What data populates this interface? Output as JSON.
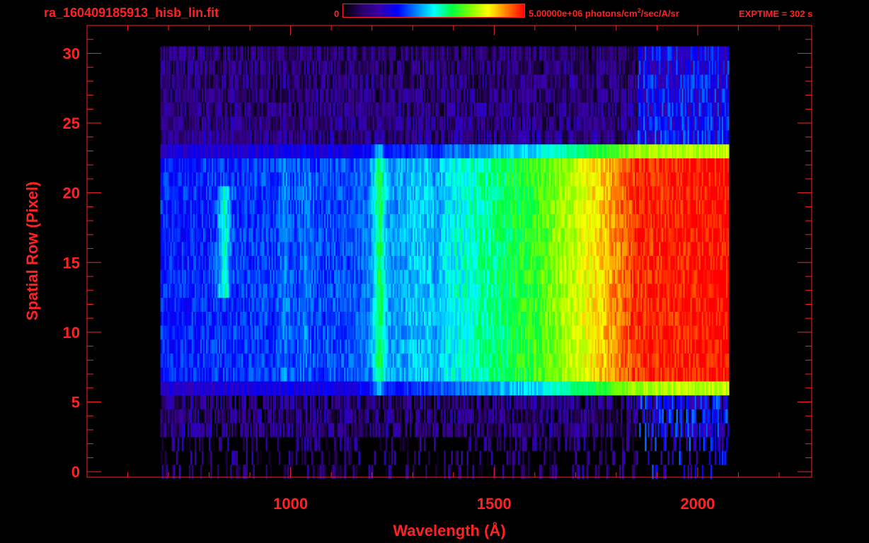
{
  "header": {
    "title": "ra_160409185913_hisb_lin.fit",
    "colorbar_min": "0",
    "colorbar_max_prefix": "5.00000e+06 photons/cm",
    "colorbar_max_sup": "2",
    "colorbar_max_suffix": "/sec/A/sr",
    "exptime": "EXPTIME = 302 s"
  },
  "colors": {
    "axes": "#ff2222",
    "background": "#000000",
    "colormap": [
      "#000000",
      "#2a0066",
      "#3a00aa",
      "#0000ff",
      "#0080ff",
      "#00ffff",
      "#00ff40",
      "#7fff00",
      "#ffff00",
      "#ff8000",
      "#ff0000"
    ]
  },
  "chart_data": {
    "type": "heatmap",
    "title": "ra_160409185913_hisb_lin.fit",
    "xlabel": "Wavelength (Å)",
    "ylabel": "Spatial Row (Pixel)",
    "x_ticks": [
      1000,
      1500,
      2000
    ],
    "y_ticks": [
      0,
      5,
      10,
      15,
      20,
      25,
      30
    ],
    "xlim": [
      500,
      2280
    ],
    "ylim": [
      -0.4,
      32
    ],
    "colorbar_range": [
      0,
      5000000
    ],
    "colorbar_units": "photons/cm^2/sec/A/sr",
    "data_extent": {
      "wavelength": [
        680,
        2075
      ],
      "rows": [
        0,
        30
      ]
    },
    "bright_band_rows": [
      6,
      23
    ],
    "emission_features_A": [
      {
        "wavelength": 835,
        "rows": [
          13,
          20
        ],
        "intensity": 0.55
      },
      {
        "wavelength": 985,
        "rows": [
          7,
          23
        ],
        "intensity": 0.4
      },
      {
        "wavelength": 1034,
        "rows": [
          7,
          23
        ],
        "intensity": 0.4
      },
      {
        "wavelength": 1216,
        "rows": [
          5,
          24
        ],
        "intensity": 0.62
      },
      {
        "wavelength": 1304,
        "rows": [
          7,
          23
        ],
        "intensity": 0.45
      },
      {
        "wavelength": 1356,
        "rows": [
          7,
          23
        ],
        "intensity": 0.42
      }
    ],
    "continuum_profile": [
      {
        "wavelength": 700,
        "intensity": 0.32
      },
      {
        "wavelength": 900,
        "intensity": 0.34
      },
      {
        "wavelength": 1150,
        "intensity": 0.36
      },
      {
        "wavelength": 1400,
        "intensity": 0.5
      },
      {
        "wavelength": 1600,
        "intensity": 0.64
      },
      {
        "wavelength": 1750,
        "intensity": 0.82
      },
      {
        "wavelength": 1850,
        "intensity": 0.97
      },
      {
        "wavelength": 2060,
        "intensity": 1.0
      }
    ]
  }
}
